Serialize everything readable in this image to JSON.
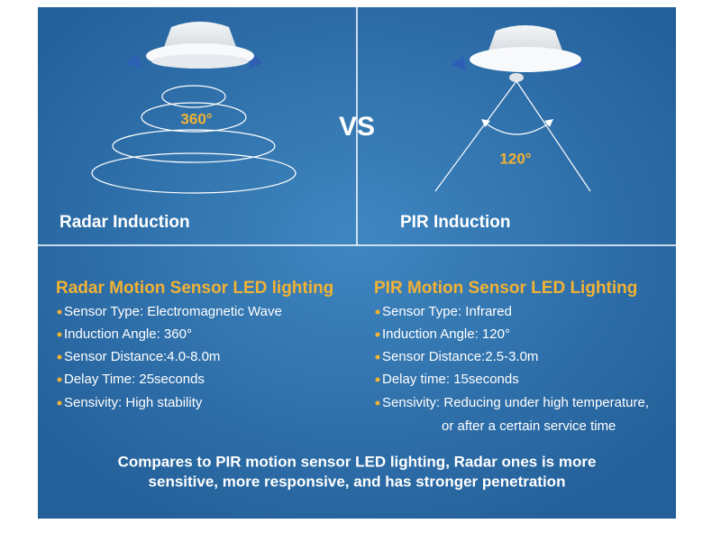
{
  "top": {
    "vs": "VS",
    "radar": {
      "angle_label": "360°",
      "caption": "Radar Induction"
    },
    "pir": {
      "angle_label": "120°",
      "caption": "PIR Induction"
    }
  },
  "radar": {
    "heading": "Radar Motion Sensor LED lighting",
    "specs": [
      "Sensor Type: Electromagnetic Wave",
      "Induction Angle: 360°",
      "Sensor Distance:4.0-8.0m",
      "Delay Time: 25seconds",
      "Sensivity: High stability"
    ]
  },
  "pir": {
    "heading": "PIR Motion Sensor LED Lighting",
    "specs": [
      "Sensor Type: Infrared",
      "Induction Angle: 120°",
      "Sensor Distance:2.5-3.0m",
      "Delay time: 15seconds",
      "Sensivity: Reducing under high temperature,",
      "or after a certain service time"
    ]
  },
  "summary": [
    "Compares to PIR motion sensor LED lighting, Radar ones is more",
    "sensitive, more responsive, and has stronger penetration"
  ]
}
